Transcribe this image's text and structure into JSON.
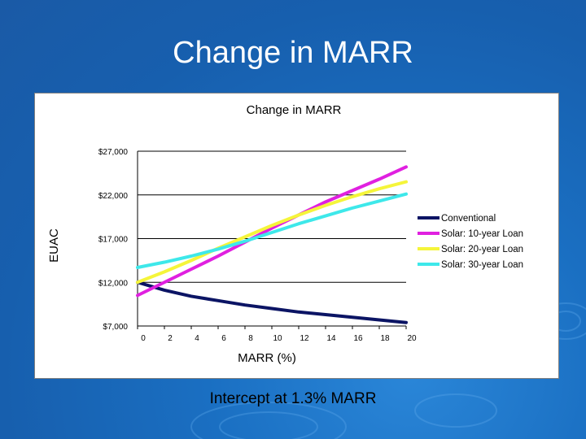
{
  "slide": {
    "title": "Change in MARR",
    "caption": "Intercept at 1.3% MARR"
  },
  "colors": {
    "background": "#1a6fc2",
    "conventional": "#0b1464",
    "solar10": "#e020e0",
    "solar20": "#f5f53a",
    "solar30": "#3ee8ea"
  },
  "chart_data": {
    "type": "line",
    "title": "Change in MARR",
    "xlabel": "MARR (%)",
    "ylabel": "EUAC",
    "xlim": [
      0,
      20
    ],
    "ylim": [
      7000,
      27000
    ],
    "x_ticks": [
      "0",
      "2",
      "4",
      "6",
      "8",
      "10",
      "12",
      "14",
      "16",
      "18",
      "20"
    ],
    "y_ticks": [
      "$7,000",
      "$12,000",
      "$17,000",
      "$22,000",
      "$27,000"
    ],
    "y_tick_values": [
      7000,
      12000,
      17000,
      22000,
      27000
    ],
    "grid": true,
    "legend_position": "right",
    "x": [
      0,
      2,
      4,
      6,
      8,
      10,
      12,
      14,
      16,
      18,
      20
    ],
    "series": [
      {
        "name": "Conventional",
        "color": "#0b1464",
        "values": [
          12000,
          11100,
          10400,
          9900,
          9400,
          9000,
          8600,
          8300,
          8000,
          7700,
          7400
        ]
      },
      {
        "name": "Solar: 10-year Loan",
        "color": "#e020e0",
        "values": [
          10500,
          12000,
          13500,
          15000,
          16600,
          18200,
          19700,
          21200,
          22500,
          23800,
          25200
        ]
      },
      {
        "name": "Solar: 20-year Loan",
        "color": "#f5f53a",
        "values": [
          12000,
          13200,
          14500,
          15900,
          17200,
          18500,
          19700,
          20800,
          21800,
          22700,
          23500
        ]
      },
      {
        "name": "Solar: 30-year Loan",
        "color": "#3ee8ea",
        "values": [
          13700,
          14300,
          15000,
          15800,
          16700,
          17700,
          18700,
          19600,
          20500,
          21300,
          22100
        ]
      }
    ]
  }
}
